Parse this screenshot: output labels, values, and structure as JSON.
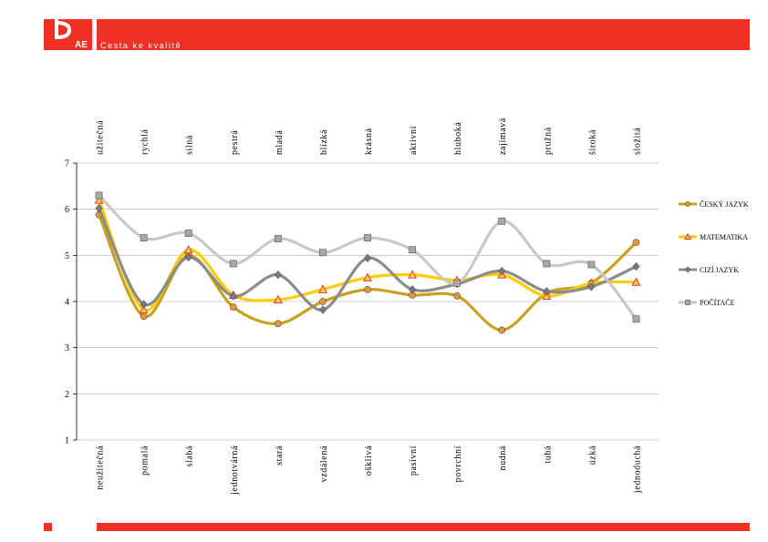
{
  "header": {
    "logo_text": "AE",
    "subtitle": "Cesta ke kvalitě"
  },
  "chart_data": {
    "type": "line",
    "title": "",
    "xlabel": "",
    "ylabel": "",
    "ylim": [
      1,
      7
    ],
    "yticks": [
      1,
      2,
      3,
      4,
      5,
      6,
      7
    ],
    "grid": true,
    "legend_position": "right",
    "categories_bottom": [
      "neužitečná",
      "pomalá",
      "slabá",
      "jednotvárná",
      "stará",
      "vzdálená",
      "ošklivá",
      "pasivní",
      "povrchní",
      "nudná",
      "tuhá",
      "úzká",
      "jednoduchá"
    ],
    "categories_top": [
      "užitečná",
      "rychlá",
      "silná",
      "pestrá",
      "mladá",
      "blízká",
      "krásná",
      "aktivní",
      "hluboká",
      "zajímavá",
      "pružná",
      "široká",
      "složitá"
    ],
    "series": [
      {
        "name": "ČESKÝ JAZYK",
        "color": "#c8a21a",
        "marker": "circle",
        "marker_fill": "#e8953a",
        "values": [
          5.88,
          3.68,
          5.0,
          3.88,
          3.52,
          4.0,
          4.26,
          4.14,
          4.12,
          3.38,
          4.18,
          4.4,
          5.28
        ]
      },
      {
        "name": "MATEMATIKA",
        "color": "#ffcc00",
        "marker": "triangle",
        "marker_fill": "#f5c85a",
        "values": [
          6.2,
          3.82,
          5.12,
          4.14,
          4.04,
          4.26,
          4.52,
          4.58,
          4.46,
          4.58,
          4.12,
          4.4,
          4.42
        ]
      },
      {
        "name": "CIZÍ JAZYK",
        "color": "#8c8c8c",
        "marker": "diamond",
        "marker_fill": "#7a7a7a",
        "values": [
          6.02,
          3.94,
          4.96,
          4.12,
          4.58,
          3.82,
          4.94,
          4.26,
          4.38,
          4.66,
          4.22,
          4.32,
          4.76
        ]
      },
      {
        "name": "POČÍTAČE",
        "color": "#c8c8c8",
        "marker": "square",
        "marker_fill": "#a8a8a8",
        "values": [
          6.3,
          5.38,
          5.48,
          4.82,
          5.36,
          5.06,
          5.38,
          5.12,
          4.4,
          5.74,
          4.82,
          4.8,
          3.62
        ]
      }
    ]
  }
}
